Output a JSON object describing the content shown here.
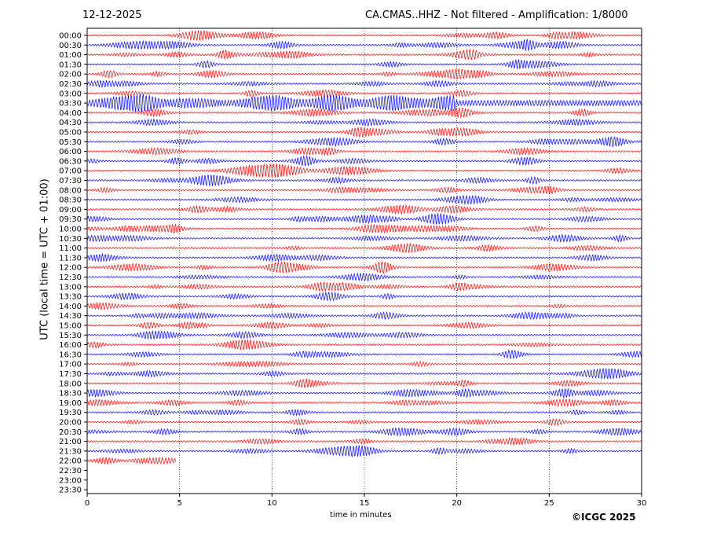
{
  "header": {
    "date": "12-12-2025",
    "station_info": "CA.CMAS..HHZ - Not filtered - Amplification: 1/8000"
  },
  "footer": {
    "copyright": "©ICGC 2025"
  },
  "chart_data": {
    "type": "line",
    "xlabel": "time in minutes",
    "ylabel": "UTC (local time = UTC + 01:00)",
    "xlim": [
      0,
      30
    ],
    "x_ticks": [
      0,
      5,
      10,
      15,
      20,
      25,
      30
    ],
    "row_labels": [
      "00:00",
      "00:30",
      "01:00",
      "01:30",
      "02:00",
      "02:30",
      "03:00",
      "03:30",
      "04:00",
      "04:30",
      "05:00",
      "05:30",
      "06:00",
      "06:30",
      "07:00",
      "07:30",
      "08:00",
      "08:30",
      "09:00",
      "09:30",
      "10:00",
      "10:30",
      "11:00",
      "11:30",
      "12:00",
      "12:30",
      "13:00",
      "13:30",
      "14:00",
      "14:30",
      "15:00",
      "15:30",
      "16:00",
      "16:30",
      "17:00",
      "17:30",
      "18:00",
      "18:30",
      "19:00",
      "19:30",
      "20:00",
      "20:30",
      "21:00",
      "21:30",
      "22:00",
      "22:30",
      "23:00",
      "23:30"
    ],
    "trace_end_minutes": [
      30,
      30,
      30,
      30,
      30,
      30,
      30,
      30,
      30,
      30,
      30,
      30,
      30,
      30,
      30,
      30,
      30,
      30,
      30,
      30,
      30,
      30,
      30,
      30,
      30,
      30,
      30,
      30,
      30,
      30,
      30,
      30,
      30,
      30,
      30,
      30,
      30,
      30,
      30,
      30,
      30,
      30,
      30,
      30,
      4.8,
      0,
      0,
      0
    ],
    "trace_colors": [
      "#ff0000",
      "#0000ff"
    ],
    "grid": "vertical dotted",
    "events": [
      {
        "row": "03:30",
        "start_min": 9.3,
        "end_min": 19.5,
        "label": ""
      }
    ]
  }
}
